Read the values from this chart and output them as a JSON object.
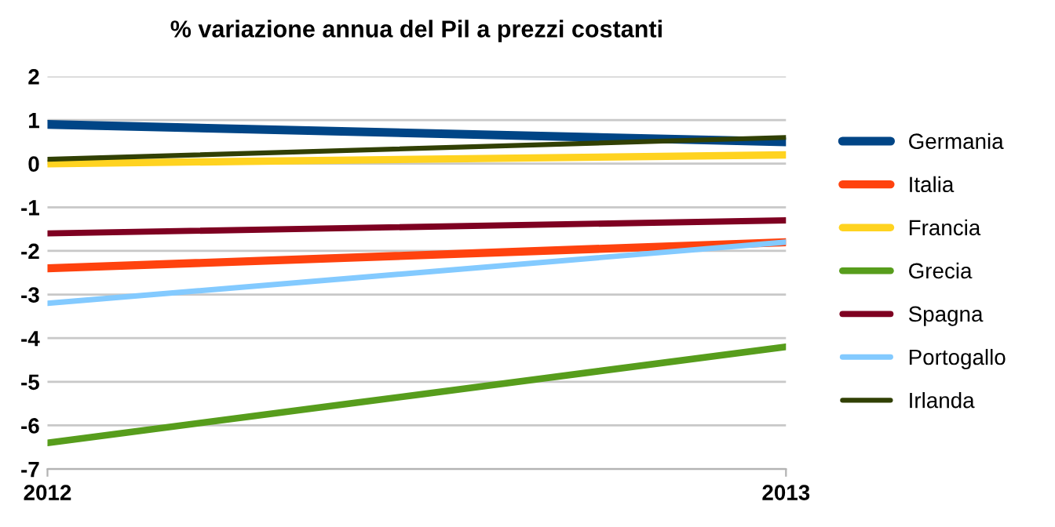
{
  "chart_data": {
    "type": "line",
    "title": "% variazione annua del Pil a prezzi costanti",
    "x": [
      2012,
      2013
    ],
    "xlim": [
      2012,
      2013
    ],
    "xticks": [
      2012,
      2013
    ],
    "ylim": [
      -7,
      2
    ],
    "yticks": [
      -7,
      -6,
      -5,
      -4,
      -3,
      -2,
      -1,
      0,
      1,
      2
    ],
    "grid": "y",
    "legend": "right",
    "marker": "none",
    "line_style": "solid",
    "series": [
      {
        "name": "Germania",
        "color": "#004586",
        "values": [
          0.9,
          0.5
        ]
      },
      {
        "name": "Italia",
        "color": "#ff420e",
        "values": [
          -2.4,
          -1.8
        ]
      },
      {
        "name": "Francia",
        "color": "#ffd320",
        "values": [
          0.0,
          0.2
        ]
      },
      {
        "name": "Grecia",
        "color": "#579d1c",
        "values": [
          -6.4,
          -4.2
        ]
      },
      {
        "name": "Spagna",
        "color": "#7e0021",
        "values": [
          -1.6,
          -1.3
        ]
      },
      {
        "name": "Portogallo",
        "color": "#83caff",
        "values": [
          -3.2,
          -1.8
        ]
      },
      {
        "name": "Irlanda",
        "color": "#314004",
        "values": [
          0.1,
          0.6
        ]
      }
    ]
  }
}
